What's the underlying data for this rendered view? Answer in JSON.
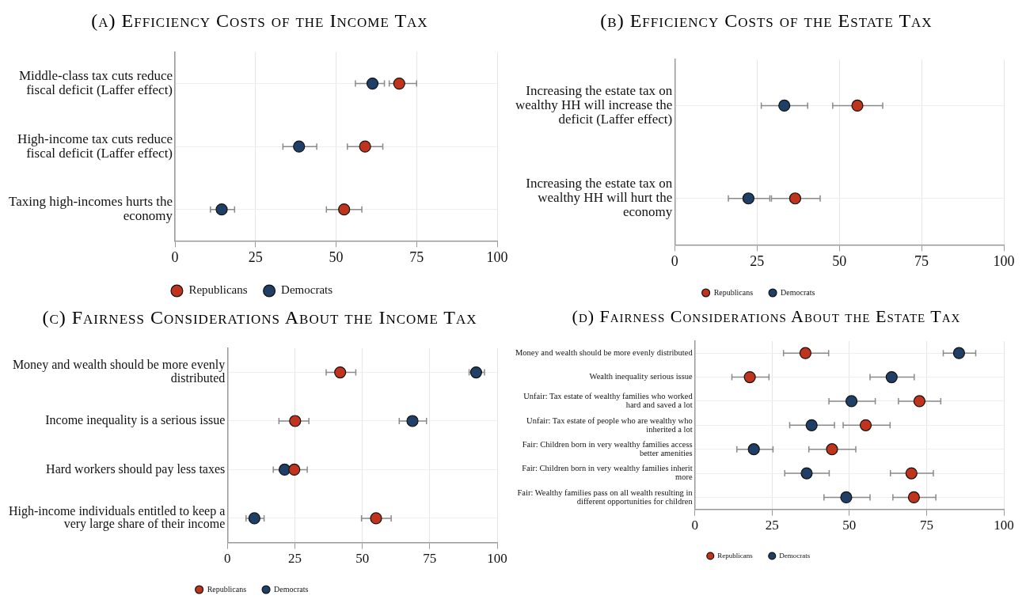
{
  "chart_data": [
    {
      "type": "scatter",
      "orientation": "horizontal",
      "title": "(a) Efficiency Costs of the Income Tax",
      "categories": [
        "Middle-class tax cuts reduce fiscal deficit (Laffer effect)",
        "High-income tax cuts reduce fiscal deficit (Laffer effect)",
        "Taxing high-incomes hurts the economy"
      ],
      "xlim": [
        0,
        100
      ],
      "xticks": [
        0,
        25,
        50,
        75,
        100
      ],
      "grid": true,
      "legend": "bottom",
      "marker": "circle",
      "series": [
        {
          "name": "Republicans",
          "color": "#c0341d",
          "values": [
            69.6,
            59,
            52.5
          ],
          "errors": [
            [
              66.5,
              75
            ],
            [
              53.5,
              64.5
            ],
            [
              47,
              58
            ]
          ]
        },
        {
          "name": "Democrats",
          "color": "#1f3f66",
          "values": [
            61.3,
            38.5,
            14.5
          ],
          "errors": [
            [
              56,
              65
            ],
            [
              33.5,
              44
            ],
            [
              11,
              18.5
            ]
          ]
        }
      ]
    },
    {
      "type": "scatter",
      "orientation": "horizontal",
      "title": "(b) Efficiency Costs of the Estate Tax",
      "categories": [
        "Increasing the estate tax on wealthy HH will increase the deficit (Laffer effect)",
        "Increasing the estate tax on wealthy HH will hurt the economy"
      ],
      "xlim": [
        0,
        100
      ],
      "xticks": [
        0,
        25,
        50,
        75,
        100
      ],
      "grid": true,
      "legend": "bottom",
      "marker": "circle",
      "series": [
        {
          "name": "Republicans",
          "color": "#c0341d",
          "values": [
            55.5,
            36.6
          ],
          "errors": [
            [
              48,
              63.2
            ],
            [
              29.4,
              44.2
            ]
          ]
        },
        {
          "name": "Democrats",
          "color": "#1f3f66",
          "values": [
            33.3,
            22.4
          ],
          "errors": [
            [
              26.3,
              40.4
            ],
            [
              16.3,
              28.9
            ]
          ]
        }
      ]
    },
    {
      "type": "scatter",
      "orientation": "horizontal",
      "title": "(c) Fairness Considerations About the Income Tax",
      "categories": [
        "Money and wealth should be more evenly distributed",
        "Income inequality is a serious issue",
        "Hard workers should pay less taxes",
        "High-income individuals entitled to keep a very large share of their income"
      ],
      "xlim": [
        0,
        100
      ],
      "xticks": [
        0,
        25,
        50,
        75,
        100
      ],
      "grid": true,
      "legend": "bottom",
      "marker": "circle",
      "series": [
        {
          "name": "Republicans",
          "color": "#c0341d",
          "values": [
            41.8,
            25.1,
            24.8,
            55.1
          ],
          "errors": [
            [
              36.6,
              47.6
            ],
            [
              19.1,
              30.2
            ],
            [
              20,
              29.6
            ],
            [
              49.7,
              60.7
            ]
          ]
        },
        {
          "name": "Democrats",
          "color": "#1f3f66",
          "values": [
            92.2,
            68.6,
            21.2,
            10
          ],
          "errors": [
            [
              89.6,
              95.3
            ],
            [
              63.7,
              73.8
            ],
            [
              17,
              25.5
            ],
            [
              6.9,
              13.6
            ]
          ]
        }
      ]
    },
    {
      "type": "scatter",
      "orientation": "horizontal",
      "title": "(d) Fairness Considerations About the Estate Tax",
      "categories": [
        "Money and wealth should be more evenly distributed",
        "Wealth inequality serious issue",
        "Unfair: Tax estate of wealthy families who worked hard and saved a lot",
        "Unfair: Tax estate of people who are wealthy who inherited a lot",
        "Fair: Children born in very wealthy families access better amenities",
        "Fair: Children born in very wealthy families inherit more",
        "Fair: Wealthy families pass on all wealth resulting in different opportunities for children"
      ],
      "xlim": [
        0,
        100
      ],
      "xticks": [
        0,
        25,
        50,
        75,
        100
      ],
      "grid": true,
      "legend": "bottom",
      "marker": "circle",
      "series": [
        {
          "name": "Republicans",
          "color": "#c0341d",
          "values": [
            35.8,
            17.8,
            72.7,
            55.3,
            44.4,
            70.1,
            70.9
          ],
          "errors": [
            [
              28.7,
              43.3
            ],
            [
              12,
              24
            ],
            [
              65.9,
              79.6
            ],
            [
              48,
              63.2
            ],
            [
              36.9,
              52.1
            ],
            [
              63.3,
              77.2
            ],
            [
              64.1,
              78
            ]
          ]
        },
        {
          "name": "Democrats",
          "color": "#1f3f66",
          "values": [
            85.5,
            63.7,
            50.7,
            37.8,
            19.1,
            36.2,
            49
          ],
          "errors": [
            [
              80.4,
              90.9
            ],
            [
              56.7,
              71
            ],
            [
              43.4,
              58.4
            ],
            [
              30.7,
              45.2
            ],
            [
              13.6,
              25.3
            ],
            [
              29.1,
              43.5
            ],
            [
              41.8,
              56.7
            ]
          ]
        }
      ]
    }
  ]
}
